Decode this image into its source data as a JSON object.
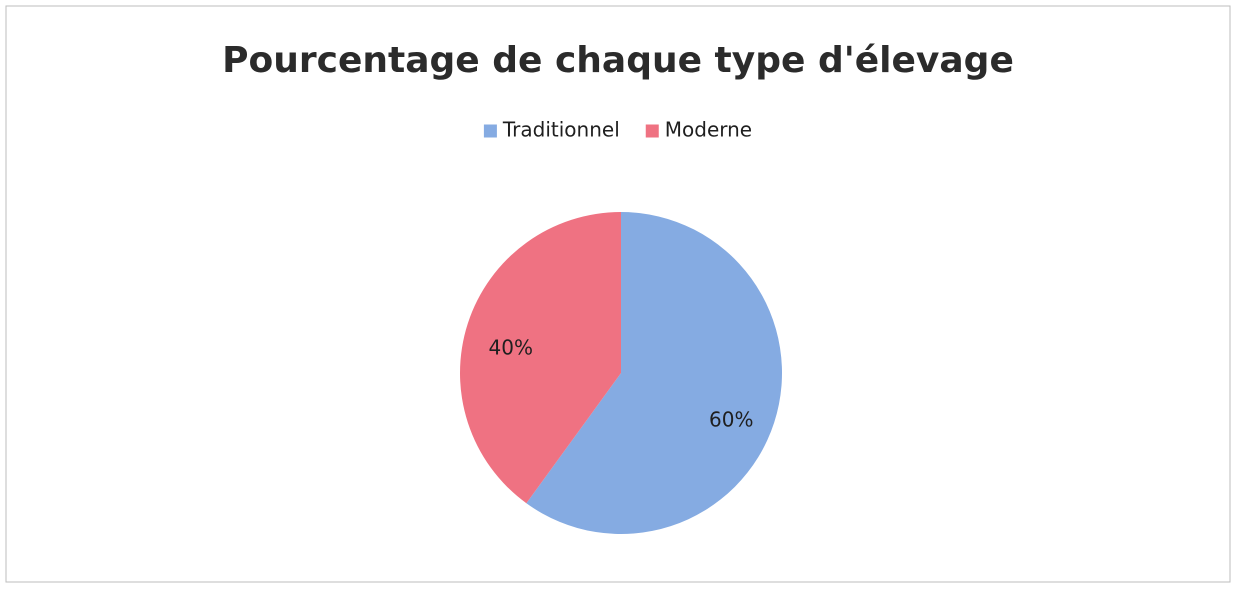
{
  "chart_data": {
    "type": "pie",
    "title": "Pourcentage de chaque type d'élevage",
    "categories": [
      "Traditionnel",
      "Moderne"
    ],
    "values": [
      60,
      40
    ],
    "value_labels": [
      "60%",
      "40%"
    ],
    "colors": [
      "#85abe2",
      "#ef7282"
    ],
    "legend": "top"
  }
}
